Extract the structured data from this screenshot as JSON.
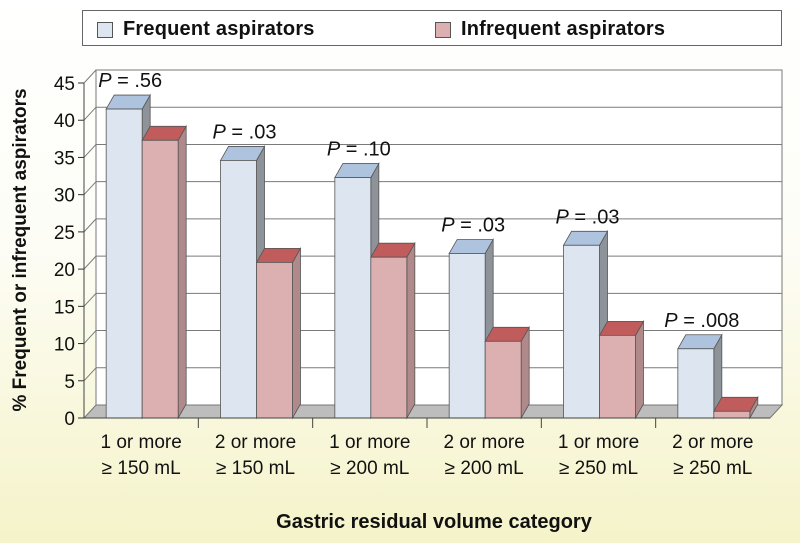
{
  "chart_data": {
    "type": "bar",
    "title": "",
    "xlabel": "Gastric residual volume category",
    "ylabel": "% Frequent or infrequent aspirators",
    "ylim": [
      0,
      45
    ],
    "yticks": [
      0,
      5,
      10,
      15,
      20,
      25,
      30,
      35,
      40,
      45
    ],
    "grid": true,
    "legend_position": "top",
    "categories": [
      [
        "1 or more",
        "≥ 150 mL"
      ],
      [
        "2 or more",
        "≥ 150 mL"
      ],
      [
        "1 or more",
        "≥ 200 mL"
      ],
      [
        "2 or more",
        "≥ 200 mL"
      ],
      [
        "1 or more",
        "≥ 250 mL"
      ],
      [
        "2 or more",
        "≥ 250 mL"
      ]
    ],
    "series": [
      {
        "name": "Frequent aspirators",
        "values": [
          41.5,
          34.6,
          32.3,
          22.1,
          23.2,
          9.3
        ]
      },
      {
        "name": "Infrequent aspirators",
        "values": [
          37.3,
          20.9,
          21.6,
          10.3,
          11.1,
          0.9
        ]
      }
    ],
    "annotations": [
      ".56",
      ".03",
      ".10",
      ".03",
      ".03",
      ".008"
    ],
    "annotation_prefix": "P",
    "annotation_sep": " = "
  },
  "colors": {
    "frequent": "#dce5f0",
    "frequent_top": "#adc3de",
    "frequent_side": "#8e9399",
    "infrequent": "#dcb0b0",
    "infrequent_top": "#c15c5c",
    "infrequent_side": "#b08a8a",
    "wall": "#ffffff",
    "floor": "#bdbdbd",
    "grid": "#7a7a7a"
  }
}
